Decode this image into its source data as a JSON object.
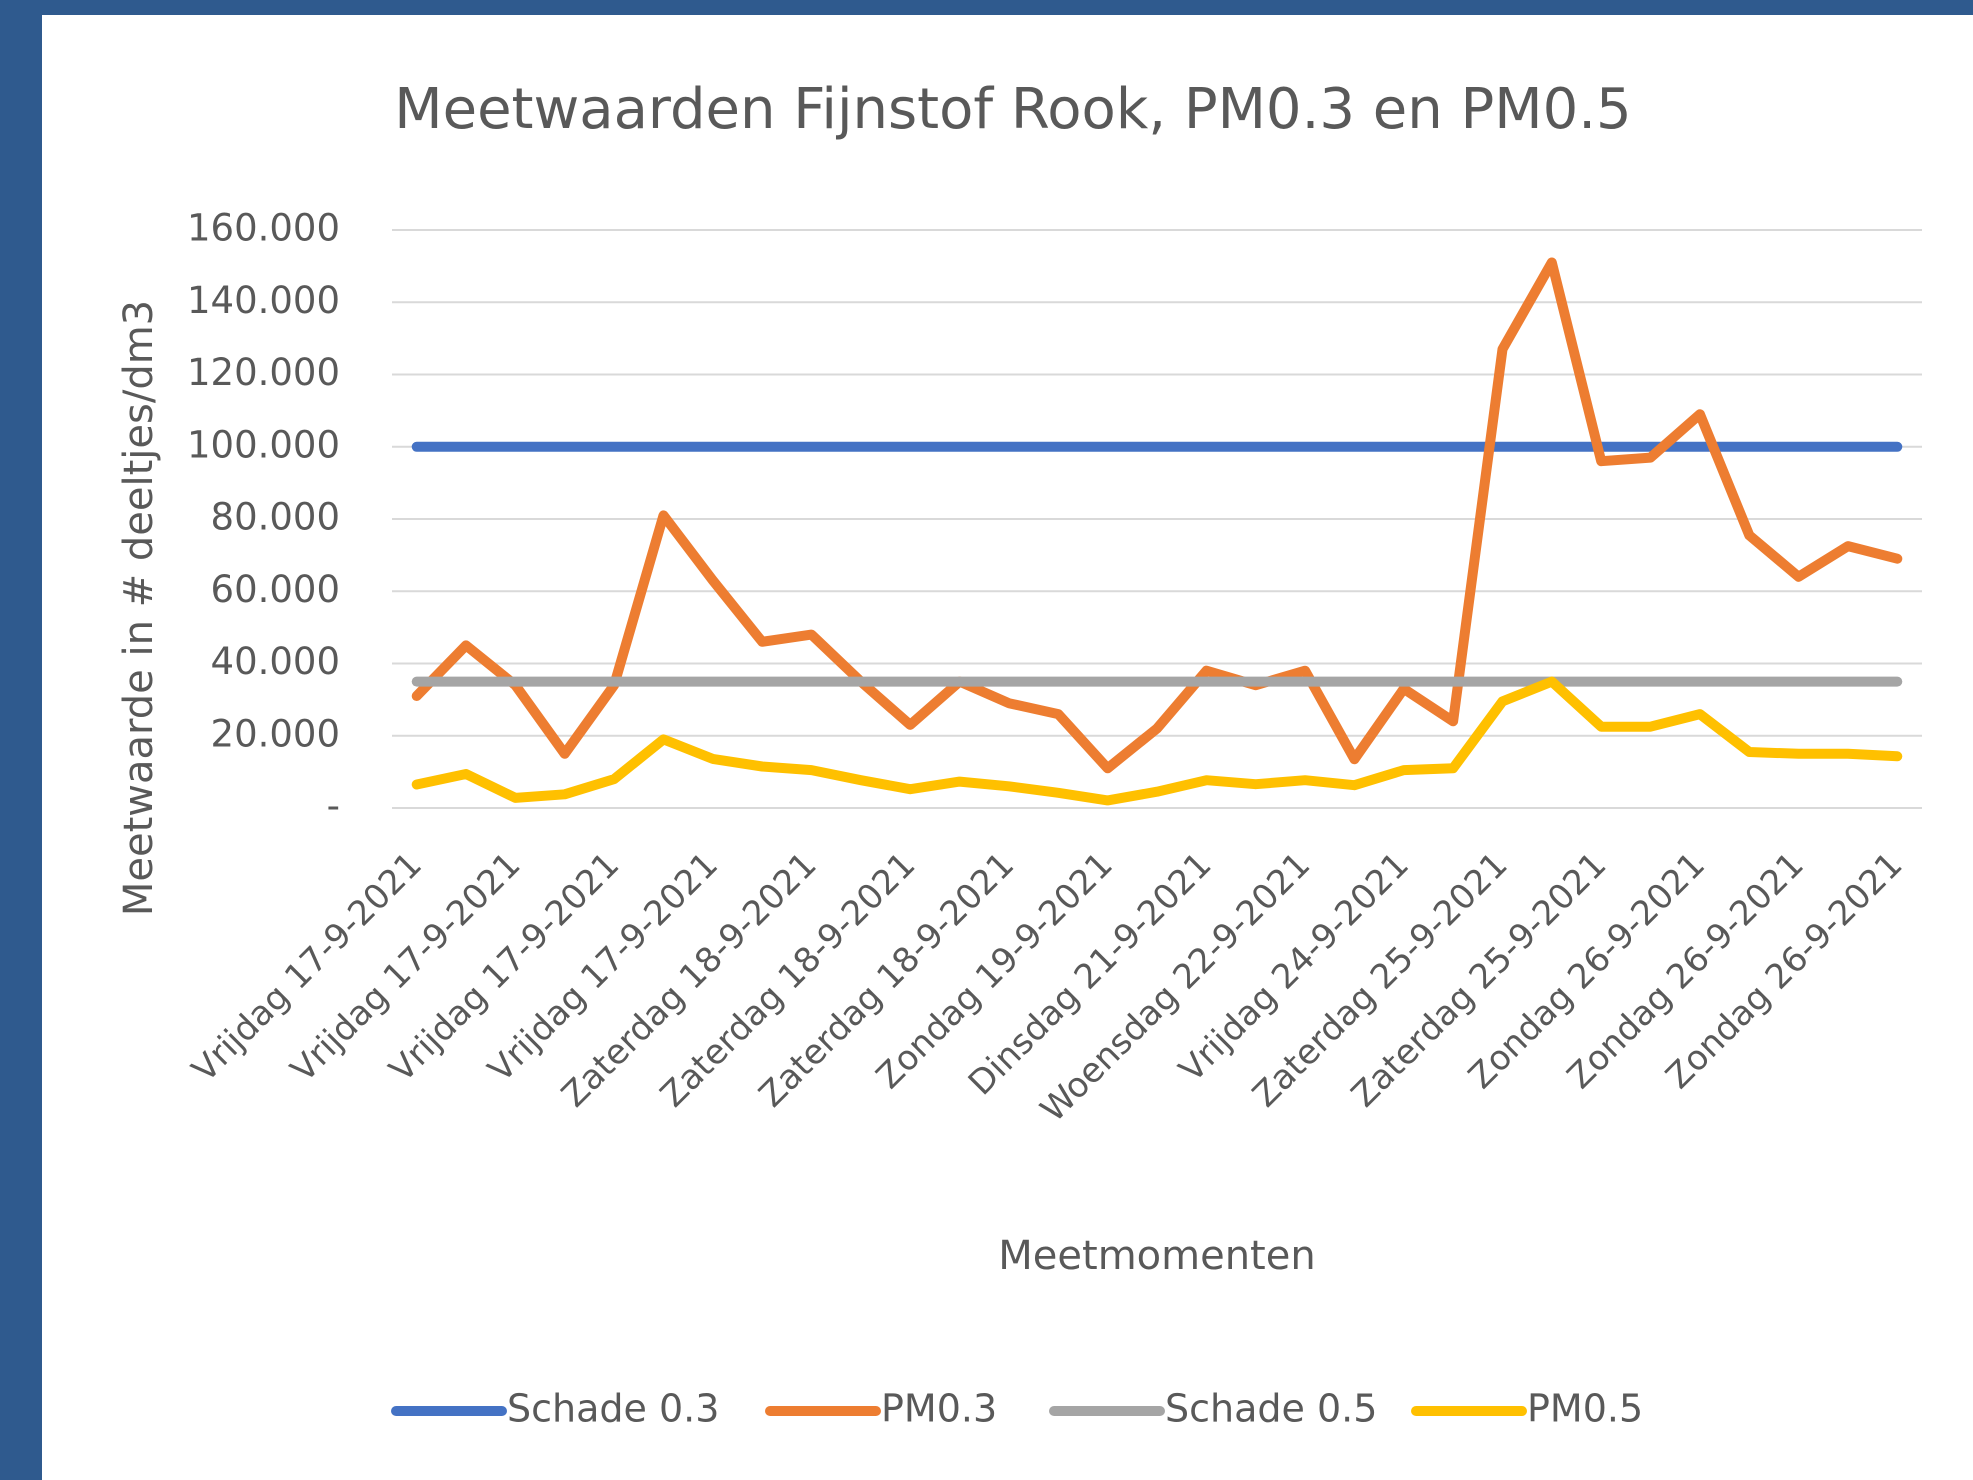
{
  "chart_data": {
    "type": "line",
    "title": "Meetwaarden Fijnstof Rook, PM0.3 en PM0.5",
    "x_label": "Meetmomenten",
    "y_label": "Meetwaarde in # deeltjes/dm3",
    "categories": [
      "Vrijdag 17-9-2021",
      null,
      "Vrijdag 17-9-2021",
      null,
      "Vrijdag 17-9-2021",
      null,
      "Vrijdag 17-9-2021",
      null,
      "Zaterdag 18-9-2021",
      null,
      "Zaterdag 18-9-2021",
      null,
      "Zaterdag 18-9-2021",
      null,
      "Zondag 19-9-2021",
      null,
      "Dinsdag 21-9-2021",
      null,
      "Woensdag 22-9-2021",
      null,
      "Vrijdag 24-9-2021",
      null,
      "Zaterdag 25-9-2021",
      null,
      "Zaterdag 25-9-2021",
      null,
      "Zondag 26-9-2021",
      null,
      "Zondag 26-9-2021",
      null,
      "Zondag 26-9-2021"
    ],
    "series": [
      {
        "name": "Schade 0.3",
        "color": "#4472c4",
        "values": [
          100000,
          100000,
          100000,
          100000,
          100000,
          100000,
          100000,
          100000,
          100000,
          100000,
          100000,
          100000,
          100000,
          100000,
          100000,
          100000,
          100000,
          100000,
          100000,
          100000,
          100000,
          100000,
          100000,
          100000,
          100000,
          100000,
          100000,
          100000,
          100000,
          100000,
          100000
        ]
      },
      {
        "name": "PM0.3",
        "color": "#ed7d31",
        "values": [
          31000,
          45000,
          34000,
          15000,
          34000,
          81000,
          63000,
          46000,
          48000,
          35000,
          23000,
          35000,
          29000,
          26000,
          11000,
          22000,
          38000,
          34000,
          38000,
          13500,
          33000,
          24000,
          127000,
          151000,
          96000,
          97000,
          109000,
          75500,
          64000,
          72500,
          69000
        ]
      },
      {
        "name": "Schade 0.5",
        "color": "#a5a5a5",
        "values": [
          35000,
          35000,
          35000,
          35000,
          35000,
          35000,
          35000,
          35000,
          35000,
          35000,
          35000,
          35000,
          35000,
          35000,
          35000,
          35000,
          35000,
          35000,
          35000,
          35000,
          35000,
          35000,
          35000,
          35000,
          35000,
          35000,
          35000,
          35000,
          35000,
          35000,
          35000
        ]
      },
      {
        "name": "PM0.5",
        "color": "#ffc000",
        "values": [
          6500,
          9400,
          2800,
          3800,
          8000,
          19000,
          13600,
          11500,
          10500,
          7700,
          5200,
          7300,
          6000,
          4200,
          2100,
          4500,
          7700,
          6600,
          7700,
          6300,
          10500,
          11000,
          29500,
          35000,
          22500,
          22500,
          26000,
          15500,
          15000,
          15000,
          14300
        ]
      }
    ],
    "ylim": [
      0,
      160000
    ],
    "yticks": [
      {
        "value": 0,
        "label": "-"
      },
      {
        "value": 20000,
        "label": "20.000"
      },
      {
        "value": 40000,
        "label": "40.000"
      },
      {
        "value": 60000,
        "label": "60.000"
      },
      {
        "value": 80000,
        "label": "80.000"
      },
      {
        "value": 100000,
        "label": "100.000"
      },
      {
        "value": 120000,
        "label": "120.000"
      },
      {
        "value": 140000,
        "label": "140.000"
      },
      {
        "value": 160000,
        "label": "160.000"
      }
    ],
    "grid": true,
    "legend": "bottom"
  }
}
